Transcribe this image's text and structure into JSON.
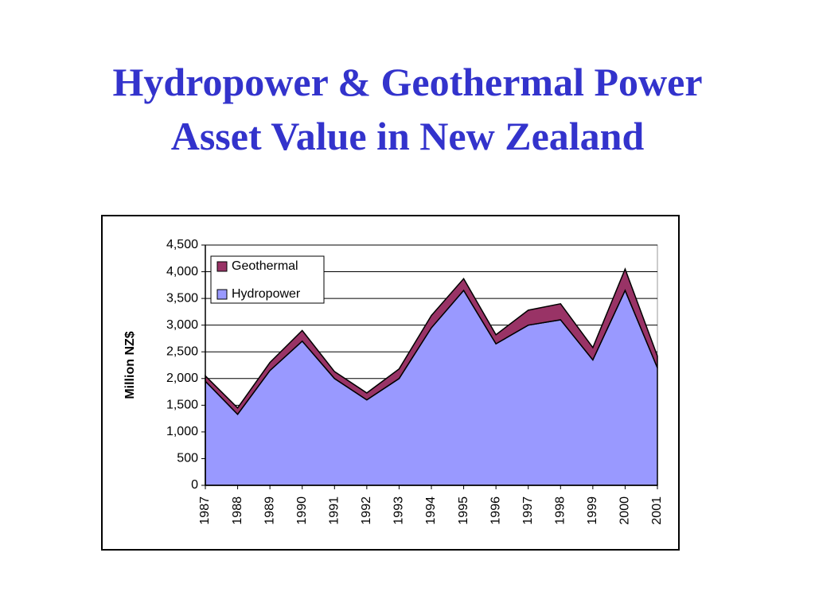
{
  "chart_data": {
    "type": "stacked_area",
    "title": [
      "Hydropower & Geothermal Power",
      "Asset Value in New Zealand"
    ],
    "y_label": "Million NZ$",
    "categories": [
      "1987",
      "1988",
      "1989",
      "1990",
      "1991",
      "1992",
      "1993",
      "1994",
      "1995",
      "1996",
      "1997",
      "1998",
      "1999",
      "2000",
      "2001"
    ],
    "series": [
      {
        "name": "Hydropower",
        "color": "#9999ff",
        "values": [
          1950,
          1330,
          2150,
          2700,
          2000,
          1600,
          2000,
          2950,
          3650,
          2650,
          3000,
          3100,
          2350,
          3650,
          2200
        ]
      },
      {
        "name": "Geothermal",
        "color": "#993366",
        "values": [
          100,
          120,
          150,
          200,
          130,
          130,
          180,
          230,
          220,
          170,
          280,
          300,
          230,
          400,
          220
        ]
      }
    ],
    "ylim": [
      0,
      4500
    ],
    "yticks": [
      0,
      500,
      {
        "value": 1000,
        "label": "1,000"
      },
      {
        "value": 1500,
        "label": "1,500"
      },
      {
        "value": 2000,
        "label": "2,000"
      },
      {
        "value": 2500,
        "label": "2,500"
      },
      {
        "value": 3000,
        "label": "3,000"
      },
      {
        "value": 3500,
        "label": "3,500"
      },
      {
        "value": 4000,
        "label": "4,000"
      },
      {
        "value": 4500,
        "label": "4,500"
      }
    ],
    "grid": true,
    "legend": "upper left"
  }
}
